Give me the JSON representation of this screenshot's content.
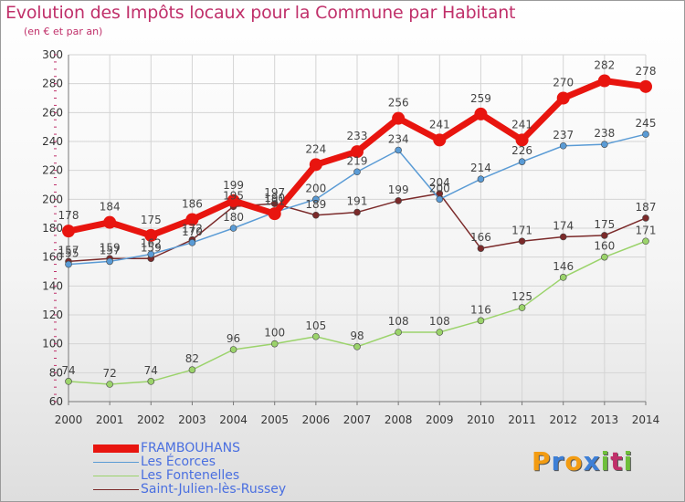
{
  "header": {
    "title": "Evolution des Impôts locaux pour la Commune par Habitant",
    "subtitle": "(en € et par an)"
  },
  "logo": {
    "letters": [
      "P",
      "r",
      "o",
      "x",
      "i",
      "t",
      "i"
    ],
    "colors": [
      "#f39c12",
      "#3d7fd6",
      "#f39c12",
      "#3d7fd6",
      "#6fbf3b",
      "#c0306a",
      "#6fbf3b"
    ]
  },
  "chart_data": {
    "type": "line",
    "title": "Evolution des Impôts locaux pour la Commune par Habitant",
    "subtitle": "(en € et par an)",
    "xlabel": "",
    "ylabel": "",
    "categories": [
      "2000",
      "2001",
      "2002",
      "2003",
      "2004",
      "2005",
      "2006",
      "2007",
      "2008",
      "2009",
      "2010",
      "2011",
      "2012",
      "2013",
      "2014"
    ],
    "ylim": [
      60,
      300
    ],
    "yticks": [
      60,
      80,
      100,
      120,
      140,
      160,
      180,
      200,
      220,
      240,
      260,
      280,
      300
    ],
    "grid": true,
    "series": [
      {
        "name": "FRAMBOUHANS",
        "color": "#e8150f",
        "values": [
          178,
          184,
          175,
          186,
          199,
          190,
          224,
          233,
          256,
          241,
          259,
          241,
          270,
          282,
          278
        ],
        "labels": [
          "178",
          "184",
          "175",
          "186",
          "199",
          "190",
          "224",
          "233",
          "256",
          "241",
          "259",
          "241",
          "270",
          "282",
          "278"
        ]
      },
      {
        "name": "Les Écorces",
        "color": "#5a9bd5",
        "values": [
          155,
          157,
          162,
          170,
          180,
          191,
          200,
          219,
          234,
          200,
          214,
          226,
          237,
          238,
          245
        ],
        "labels": [
          "155",
          "157",
          "162",
          "170",
          "180",
          "191",
          "200",
          "219",
          "234",
          "200",
          "214",
          "226",
          "237",
          "238",
          "245"
        ]
      },
      {
        "name": "Les Fontenelles",
        "color": "#9bd36b",
        "values": [
          74,
          72,
          74,
          82,
          96,
          100,
          105,
          98,
          108,
          108,
          116,
          125,
          146,
          160,
          171
        ],
        "labels": [
          "74",
          "72",
          "74",
          "82",
          "96",
          "100",
          "105",
          "98",
          "108",
          "108",
          "116",
          "125",
          "146",
          "160",
          "171"
        ]
      },
      {
        "name": "Saint-Julien-lès-Russey",
        "color": "#7b2a2a",
        "values": [
          157,
          159,
          159,
          172,
          195,
          197,
          189,
          191,
          199,
          204,
          166,
          171,
          174,
          175,
          187
        ],
        "labels": [
          "157",
          "159",
          "159",
          "172",
          "195",
          "197",
          "189",
          "191",
          "199",
          "204",
          "166",
          "171",
          "174",
          "175",
          "187"
        ]
      }
    ]
  }
}
